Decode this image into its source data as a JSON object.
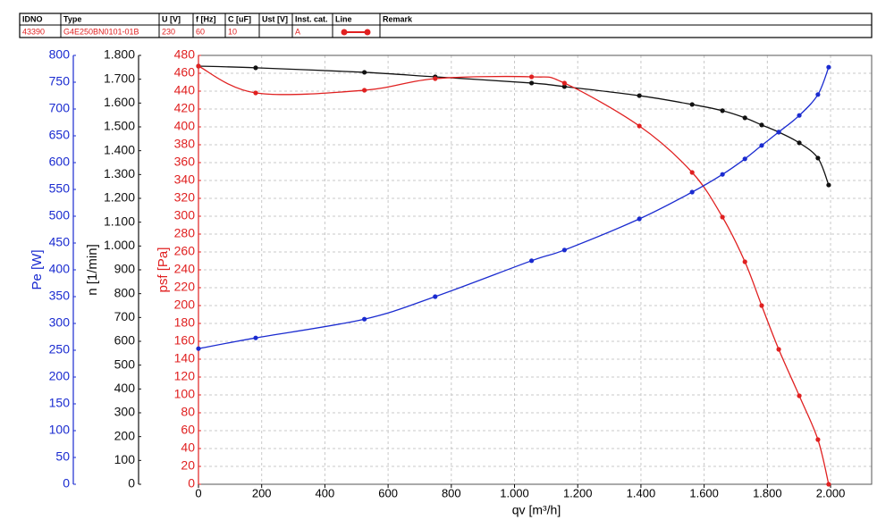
{
  "header": {
    "columns": [
      "IDNO",
      "Type",
      "U [V]",
      "f [Hz]",
      "C [uF]",
      "Ust [V]",
      "Inst. cat.",
      "Line",
      "Remark"
    ],
    "row": [
      "43390",
      "G4E250BN0101-01B",
      "230",
      "60",
      "10",
      null,
      "A",
      null,
      null
    ]
  },
  "chart_data": {
    "type": "line",
    "xlabel": "qv [m³/h]",
    "xlim": [
      0,
      2130
    ],
    "xticks": [
      0,
      200,
      400,
      600,
      800,
      {
        "value": 1000,
        "label": "1.000"
      },
      {
        "value": 1200,
        "label": "1.200"
      },
      {
        "value": 1400,
        "label": "1.400"
      },
      {
        "value": 1600,
        "label": "1.600"
      },
      {
        "value": 1800,
        "label": "1.800"
      },
      {
        "value": 2000,
        "label": "2.000"
      }
    ],
    "grid": true,
    "axes": [
      {
        "label": "psf [Pa]",
        "color": "#e02020",
        "lim": [
          0,
          480
        ],
        "ticks": [
          0,
          20,
          40,
          60,
          80,
          100,
          120,
          140,
          160,
          180,
          200,
          220,
          240,
          260,
          280,
          300,
          320,
          340,
          360,
          380,
          400,
          420,
          440,
          460,
          480
        ]
      },
      {
        "label": "n [1/min]",
        "color": "#111111",
        "lim": [
          0,
          1800
        ],
        "ticks": [
          0,
          100,
          200,
          300,
          400,
          500,
          600,
          700,
          800,
          900,
          {
            "value": 1000,
            "label": "1.000"
          },
          {
            "value": 1100,
            "label": "1.100"
          },
          {
            "value": 1200,
            "label": "1.200"
          },
          {
            "value": 1300,
            "label": "1.300"
          },
          {
            "value": 1400,
            "label": "1.400"
          },
          {
            "value": 1500,
            "label": "1.500"
          },
          {
            "value": 1600,
            "label": "1.600"
          },
          {
            "value": 1700,
            "label": "1.700"
          },
          {
            "value": 1800,
            "label": "1.800"
          }
        ]
      },
      {
        "label": "Pe [W]",
        "color": "#1a2bd0",
        "lim": [
          0,
          800
        ],
        "ticks": [
          0,
          50,
          100,
          150,
          200,
          250,
          300,
          350,
          400,
          450,
          500,
          550,
          600,
          650,
          700,
          750,
          800
        ]
      }
    ],
    "x": [
      0,
      181,
      525,
      749,
      1054,
      1158,
      1395,
      1562,
      1658,
      1729,
      1782,
      1836,
      1901,
      1960,
      1994
    ],
    "series": [
      {
        "axis": 1,
        "color": "#111111",
        "values": [
          1755,
          1748,
          1729,
          1710,
          1684,
          1669,
          1631,
          1594,
          1568,
          1538,
          1508,
          1478,
          1433,
          1369,
          1256
        ]
      },
      {
        "axis": 0,
        "color": "#e02020",
        "values": [
          468,
          438,
          441,
          454,
          456,
          449,
          401,
          349,
          299,
          249,
          200,
          151,
          99,
          50,
          0
        ]
      },
      {
        "axis": 2,
        "color": "#1a2bd0",
        "values": [
          253,
          273,
          308,
          350,
          417,
          437,
          495,
          545,
          578,
          607,
          632,
          657,
          688,
          727,
          778
        ]
      }
    ]
  }
}
